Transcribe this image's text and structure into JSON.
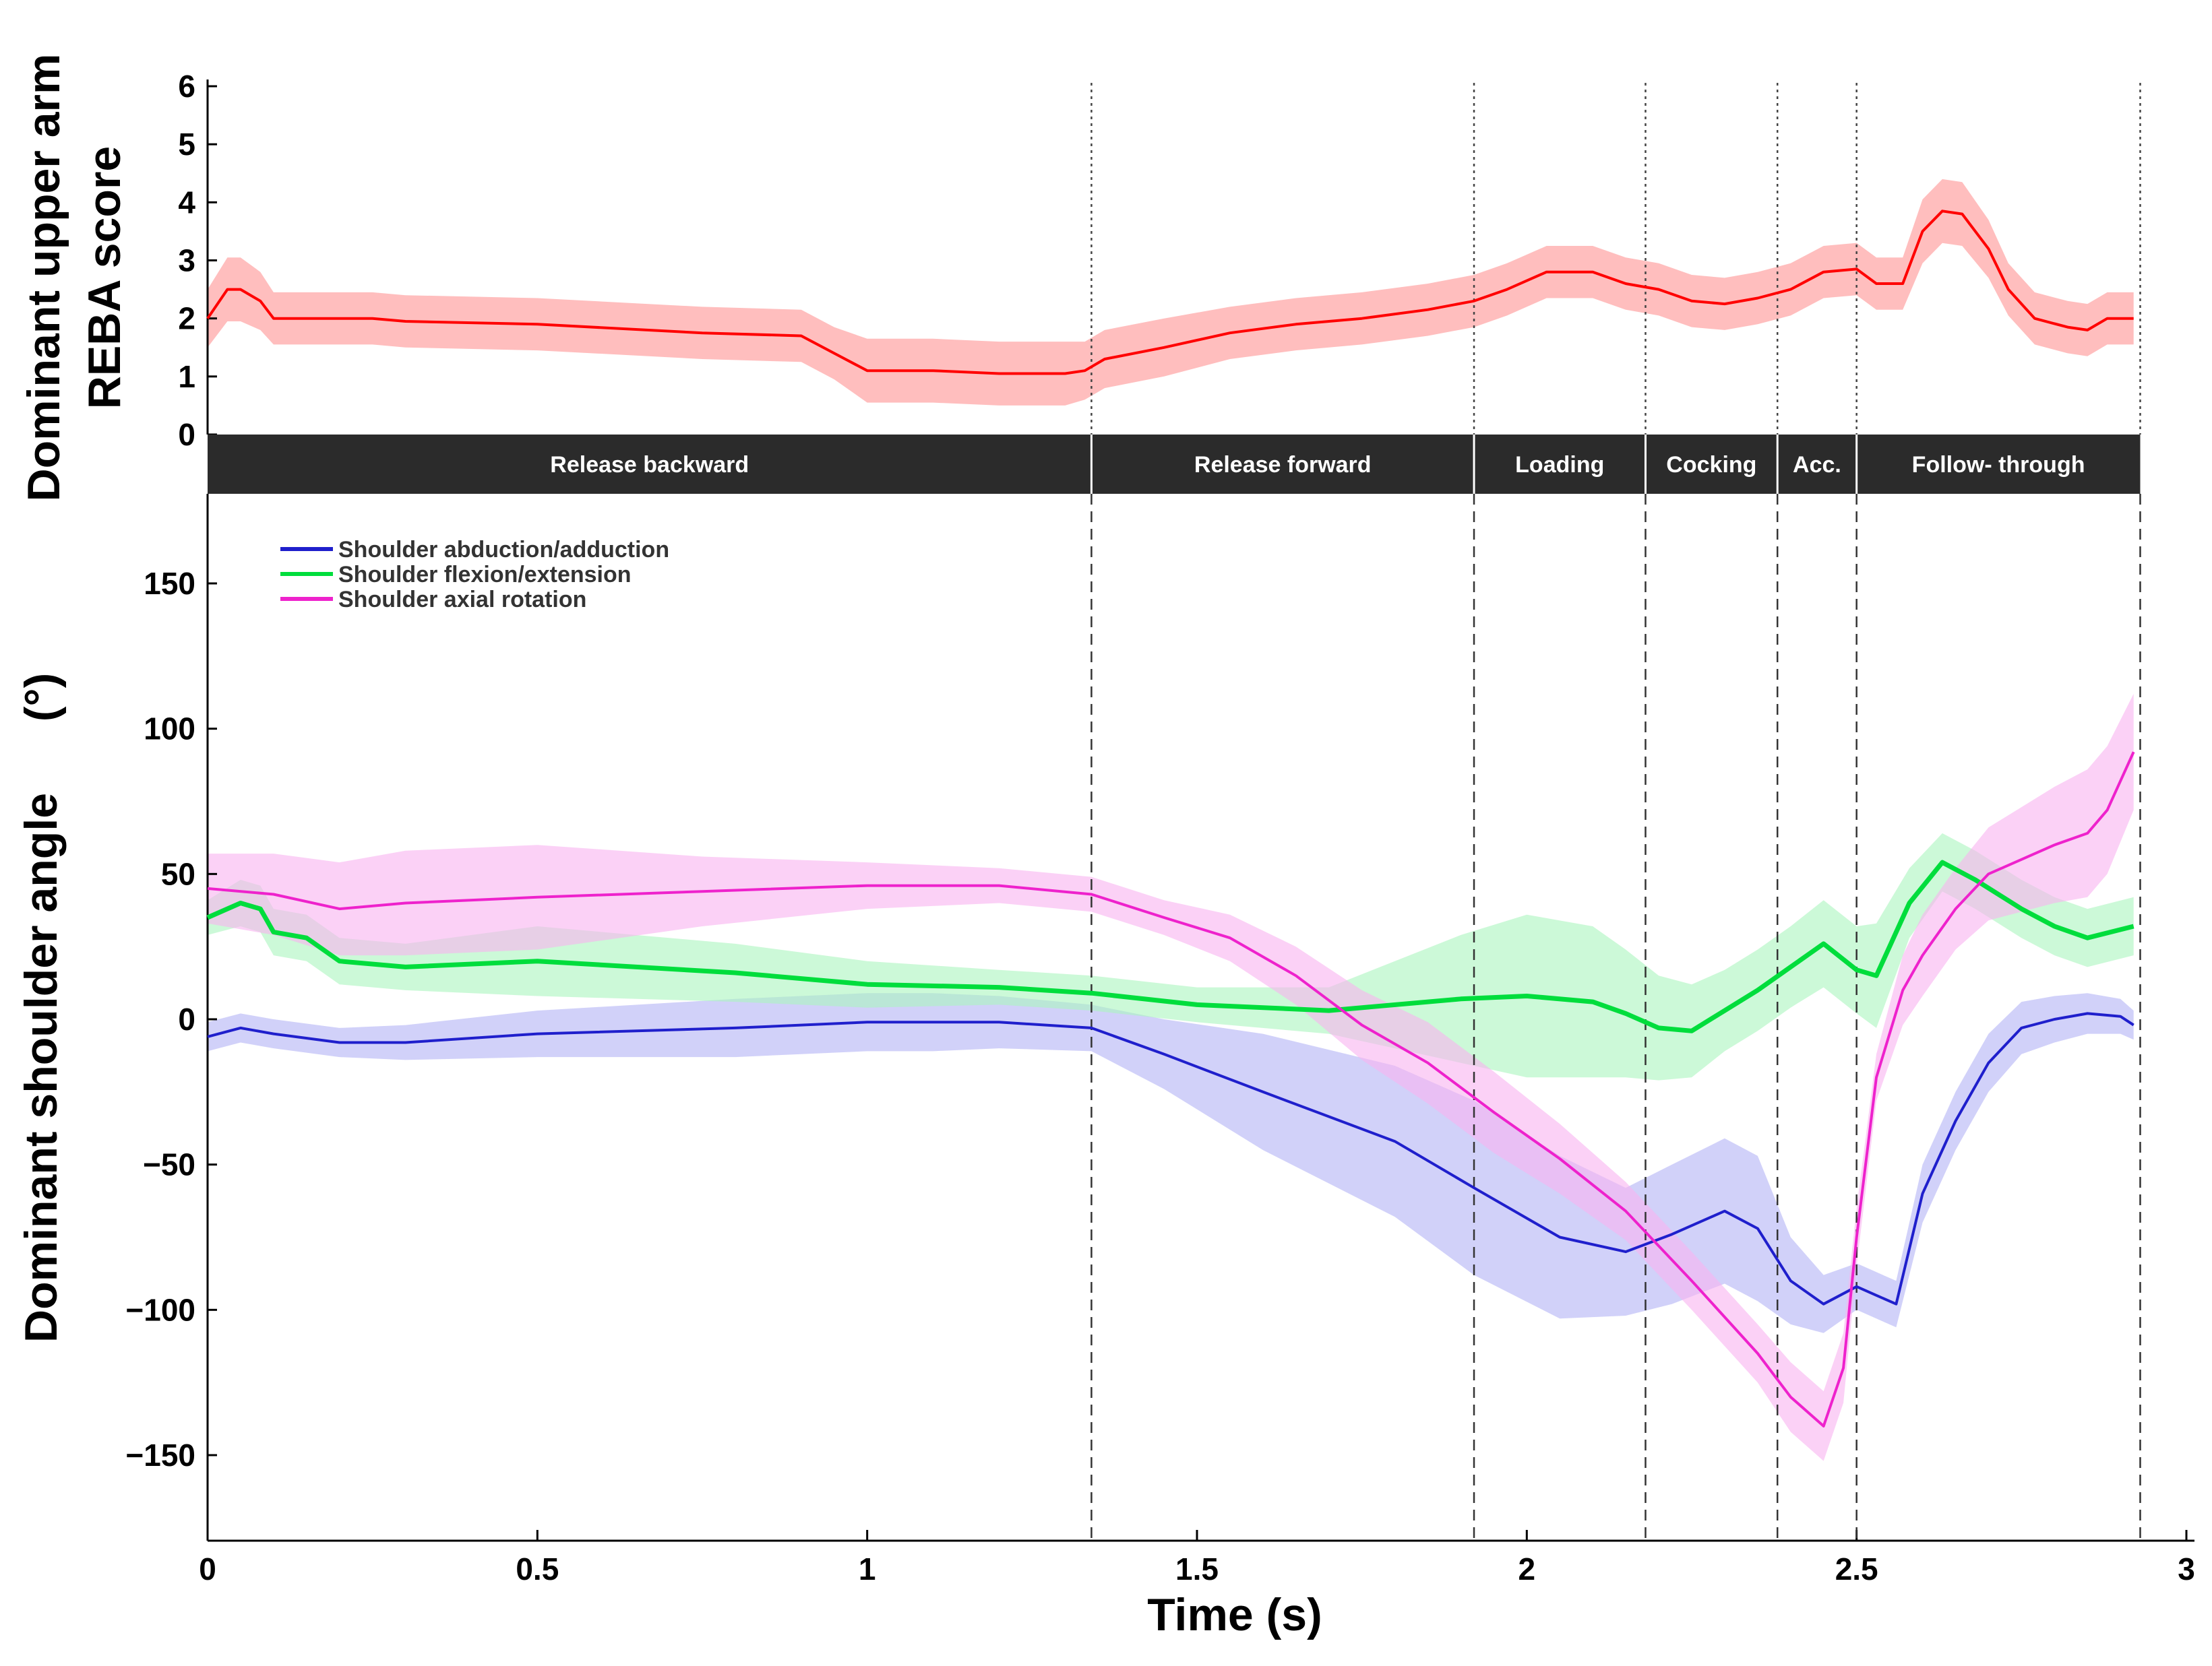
{
  "chart_data": [
    {
      "type": "line",
      "panel": "top",
      "ylabel_line1": "Dominant upper arm",
      "ylabel_line2": "REBA score",
      "ylim": [
        0,
        6
      ],
      "yticks": [
        "0",
        "1",
        "2",
        "3",
        "4",
        "5",
        "6"
      ],
      "series": [
        {
          "color": "#ff0000",
          "band_color": "#ffb3b3",
          "x": [
            0,
            0.03,
            0.05,
            0.08,
            0.1,
            0.12,
            0.2,
            0.25,
            0.3,
            0.5,
            0.75,
            0.9,
            0.95,
            1.0,
            1.1,
            1.2,
            1.3,
            1.33,
            1.36,
            1.45,
            1.55,
            1.65,
            1.75,
            1.85,
            1.92,
            1.97,
            2.03,
            2.1,
            2.15,
            2.2,
            2.25,
            2.3,
            2.35,
            2.4,
            2.45,
            2.5,
            2.53,
            2.57,
            2.6,
            2.63,
            2.66,
            2.7,
            2.73,
            2.77,
            2.82,
            2.85,
            2.88,
            2.92
          ],
          "y": [
            2,
            2.5,
            2.5,
            2.3,
            2.0,
            2.0,
            2.0,
            2.0,
            1.95,
            1.9,
            1.75,
            1.7,
            1.4,
            1.1,
            1.1,
            1.05,
            1.05,
            1.1,
            1.3,
            1.5,
            1.75,
            1.9,
            2.0,
            2.15,
            2.3,
            2.5,
            2.8,
            2.8,
            2.6,
            2.5,
            2.3,
            2.25,
            2.35,
            2.5,
            2.8,
            2.85,
            2.6,
            2.6,
            3.5,
            3.85,
            3.8,
            3.2,
            2.5,
            2.0,
            1.85,
            1.8,
            2.0,
            2.0
          ],
          "spread": [
            0.5,
            0.55,
            0.55,
            0.5,
            0.45,
            0.45,
            0.45,
            0.45,
            0.45,
            0.45,
            0.45,
            0.45,
            0.45,
            0.55,
            0.55,
            0.55,
            0.55,
            0.5,
            0.5,
            0.5,
            0.45,
            0.45,
            0.45,
            0.45,
            0.45,
            0.45,
            0.45,
            0.45,
            0.45,
            0.45,
            0.45,
            0.45,
            0.45,
            0.45,
            0.45,
            0.45,
            0.45,
            0.45,
            0.55,
            0.55,
            0.55,
            0.5,
            0.45,
            0.45,
            0.45,
            0.45,
            0.45,
            0.45
          ]
        }
      ]
    },
    {
      "type": "line",
      "panel": "bottom",
      "xlabel": "Time (s)",
      "ylabel_line1": "Dominant shoulder angle",
      "ylabel_unit": "(°)",
      "xlim": [
        0,
        3
      ],
      "ylim": [
        -180,
        180
      ],
      "xticks": [
        "0",
        "0.5",
        "1",
        "1.5",
        "2",
        "2.5",
        "3"
      ],
      "yticks": [
        "150",
        "100",
        "50",
        "0",
        "−50",
        "−100",
        "−150"
      ],
      "ytick_values": [
        150,
        100,
        50,
        0,
        -50,
        -100,
        -150
      ],
      "legend_placement": "top-left",
      "series": [
        {
          "name": "Shoulder abduction/adduction",
          "color": "#1f1fcc",
          "band_color": "#b3b3f5",
          "x": [
            0,
            0.05,
            0.1,
            0.2,
            0.3,
            0.5,
            0.8,
            1.0,
            1.1,
            1.2,
            1.34,
            1.45,
            1.6,
            1.8,
            1.92,
            2.05,
            2.15,
            2.22,
            2.3,
            2.35,
            2.4,
            2.45,
            2.5,
            2.53,
            2.56,
            2.6,
            2.65,
            2.7,
            2.75,
            2.8,
            2.85,
            2.9,
            2.92
          ],
          "y": [
            -6,
            -3,
            -5,
            -8,
            -8,
            -5,
            -3,
            -1,
            -1,
            -1,
            -3,
            -12,
            -25,
            -42,
            -58,
            -75,
            -80,
            -74,
            -66,
            -72,
            -90,
            -98,
            -92,
            -95,
            -98,
            -60,
            -35,
            -15,
            -3,
            0,
            2,
            1,
            -2
          ],
          "spread": [
            5,
            5,
            5,
            5,
            6,
            8,
            10,
            10,
            10,
            9,
            8,
            12,
            20,
            26,
            30,
            28,
            22,
            24,
            25,
            25,
            15,
            10,
            8,
            8,
            8,
            10,
            10,
            10,
            9,
            8,
            7,
            6,
            5
          ]
        },
        {
          "name": "Shoulder flexion/extension",
          "color": "#00dd3c",
          "band_color": "#aaf5be",
          "x": [
            0,
            0.05,
            0.08,
            0.1,
            0.15,
            0.2,
            0.3,
            0.5,
            0.8,
            1.0,
            1.2,
            1.34,
            1.5,
            1.7,
            1.9,
            2.0,
            2.1,
            2.15,
            2.2,
            2.25,
            2.3,
            2.35,
            2.4,
            2.45,
            2.5,
            2.53,
            2.58,
            2.63,
            2.68,
            2.75,
            2.8,
            2.85,
            2.92
          ],
          "y": [
            35,
            40,
            38,
            30,
            28,
            20,
            18,
            20,
            16,
            12,
            11,
            9,
            5,
            3,
            7,
            8,
            6,
            2,
            -3,
            -4,
            3,
            10,
            18,
            26,
            17,
            15,
            40,
            54,
            48,
            38,
            32,
            28,
            32
          ],
          "spread": [
            6,
            8,
            8,
            8,
            8,
            8,
            8,
            12,
            10,
            8,
            6,
            6,
            6,
            8,
            22,
            28,
            26,
            22,
            18,
            16,
            14,
            14,
            14,
            15,
            15,
            18,
            12,
            10,
            10,
            10,
            10,
            10,
            10
          ]
        },
        {
          "name": "Shoulder axial rotation",
          "color": "#ee22cc",
          "band_color": "#f9b3f0",
          "x": [
            0,
            0.1,
            0.2,
            0.3,
            0.5,
            0.75,
            1.0,
            1.2,
            1.34,
            1.45,
            1.55,
            1.65,
            1.75,
            1.85,
            1.95,
            2.05,
            2.15,
            2.25,
            2.35,
            2.4,
            2.45,
            2.48,
            2.5,
            2.53,
            2.57,
            2.6,
            2.65,
            2.7,
            2.75,
            2.8,
            2.85,
            2.88,
            2.92
          ],
          "y": [
            45,
            43,
            38,
            40,
            42,
            44,
            46,
            46,
            43,
            35,
            28,
            15,
            -2,
            -15,
            -32,
            -48,
            -66,
            -90,
            -115,
            -130,
            -140,
            -120,
            -75,
            -20,
            10,
            22,
            38,
            50,
            55,
            60,
            64,
            72,
            92
          ],
          "spread": [
            12,
            14,
            16,
            18,
            18,
            12,
            8,
            6,
            6,
            6,
            8,
            10,
            12,
            14,
            14,
            12,
            10,
            10,
            10,
            12,
            12,
            12,
            10,
            8,
            12,
            14,
            14,
            16,
            18,
            20,
            22,
            22,
            20
          ]
        }
      ]
    }
  ],
  "phases": [
    {
      "label": "Release backward",
      "start": 0.0,
      "end": 1.34
    },
    {
      "label": "Release forward",
      "start": 1.34,
      "end": 1.92
    },
    {
      "label": "Loading",
      "start": 1.92,
      "end": 2.18
    },
    {
      "label": "Cocking",
      "start": 2.18,
      "end": 2.38
    },
    {
      "label": "Acc.",
      "start": 2.38,
      "end": 2.5
    },
    {
      "label": "Follow- through",
      "start": 2.5,
      "end": 2.93
    }
  ],
  "phase_boundaries": [
    1.34,
    1.92,
    2.18,
    2.38,
    2.5,
    2.93
  ]
}
